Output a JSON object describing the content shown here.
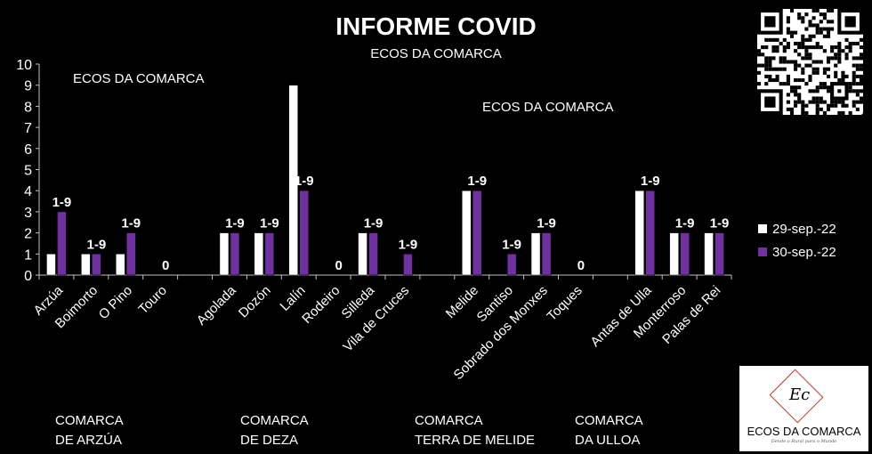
{
  "title": "INFORME COVID",
  "subtitle": "ECOS DA COMARCA",
  "watermarks": [
    "ECOS DA COMARCA",
    "ECOS DA COMARCA"
  ],
  "legend": [
    {
      "label": "29-sep.-22",
      "color": "#ffffff"
    },
    {
      "label": "30-sep.-22",
      "color": "#7030a0"
    }
  ],
  "groups": [
    {
      "line1": "COMARCA",
      "line2": "DE ARZÚA"
    },
    {
      "line1": "COMARCA",
      "line2": "DE DEZA"
    },
    {
      "line1": "COMARCA",
      "line2": "TERRA DE MELIDE"
    },
    {
      "line1": "COMARCA",
      "line2": "DA ULLOA"
    }
  ],
  "logo": {
    "text": "ECOS DA COMARCA",
    "tagline": "Dende o Rural para o Mundo",
    "monogram": "Ec"
  },
  "chart_data": {
    "type": "bar",
    "ylim": [
      0,
      10
    ],
    "yticks": [
      0,
      1,
      2,
      3,
      4,
      5,
      6,
      7,
      8,
      9,
      10
    ],
    "categories": [
      "Arzúa",
      "Boimorto",
      "O Pino",
      "Touro",
      "",
      "Agolada",
      "Dozón",
      "Lalín",
      "Rodeiro",
      "Silleda",
      "Vila de Cruces",
      "",
      "Melide",
      "Santiso",
      "Sobrado dos Monxes",
      "Toques",
      "",
      "Antas de Ulla",
      "Monterroso",
      "Palas de Rei"
    ],
    "series": [
      {
        "name": "29-sep.-22",
        "color": "#ffffff",
        "values": [
          1,
          1,
          1,
          0,
          null,
          2,
          2,
          9,
          0,
          2,
          0,
          null,
          4,
          0,
          2,
          0,
          null,
          4,
          2,
          2
        ]
      },
      {
        "name": "30-sep.-22",
        "color": "#7030a0",
        "values": [
          3,
          1,
          2,
          0,
          null,
          2,
          2,
          4,
          0,
          2,
          1,
          null,
          4,
          1,
          2,
          0,
          null,
          4,
          2,
          2
        ]
      }
    ],
    "data_labels": [
      "1-9",
      "1-9",
      "1-9",
      "0",
      "",
      "1-9",
      "1-9",
      "1-9",
      "0",
      "1-9",
      "1-9",
      "",
      "1-9",
      "1-9",
      "1-9",
      "0",
      "",
      "1-9",
      "1-9",
      "1-9"
    ],
    "grid": false,
    "legend_position": "right"
  }
}
